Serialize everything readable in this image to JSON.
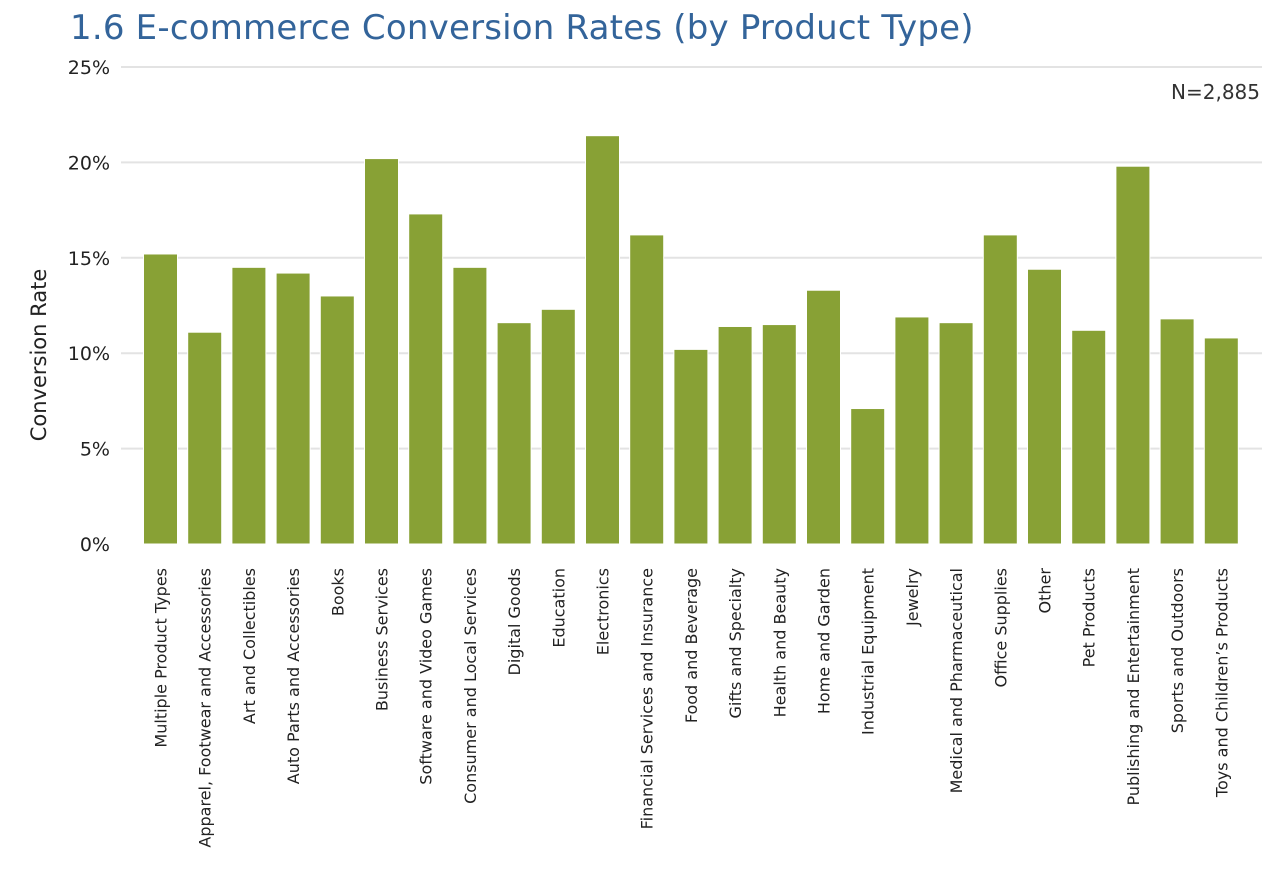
{
  "chart_data": {
    "type": "bar",
    "title": "1.6 E-commerce Conversion Rates (by Product Type)",
    "xlabel": "",
    "ylabel": "Conversion Rate",
    "annotation": "N=2,885",
    "ylim": [
      0,
      25
    ],
    "y_ticks": [
      0,
      5,
      10,
      15,
      20,
      25
    ],
    "y_tick_labels": [
      "0%",
      "5%",
      "10%",
      "15%",
      "20%",
      "25%"
    ],
    "grid": true,
    "bar_color": "#88a135",
    "categories": [
      "Multiple Product Types",
      "Apparel, Footwear and Accessories",
      "Art and Collectibles",
      "Auto Parts and Accessories",
      "Books",
      "Business Services",
      "Software and Video Games",
      "Consumer and Local Services",
      "Digital Goods",
      "Education",
      "Electronics",
      "Financial Services and Insurance",
      "Food and Beverage",
      "Gifts and Specialty",
      "Health and Beauty",
      "Home and Garden",
      "Industrial Equipment",
      "Jewelry",
      "Medical and Pharmaceutical",
      "Office Supplies",
      "Other",
      "Pet Products",
      "Publishing and Entertainment",
      "Sports and Outdoors",
      "Toys and Children’s Products"
    ],
    "values": [
      15.2,
      11.1,
      14.5,
      14.2,
      13.0,
      20.2,
      17.3,
      14.5,
      11.6,
      12.3,
      21.4,
      16.2,
      10.2,
      11.4,
      11.5,
      13.3,
      7.1,
      11.9,
      11.6,
      16.2,
      14.4,
      11.2,
      19.8,
      11.8,
      10.8
    ]
  }
}
